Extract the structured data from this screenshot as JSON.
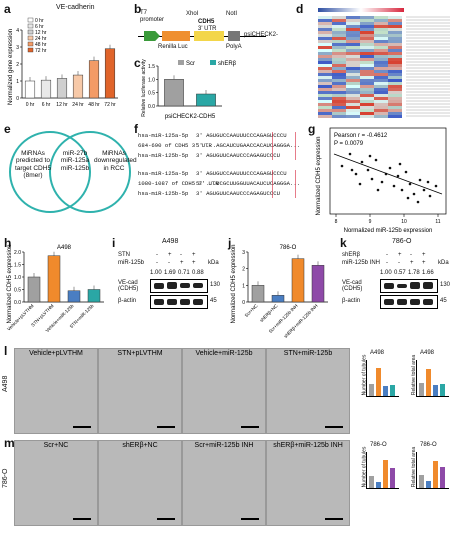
{
  "panels": {
    "a": {
      "letter": "a",
      "title": "VE-cadherin",
      "ylabel": "Normalized gene expression",
      "legend": [
        "0 hr",
        "6 hr",
        "12 hr",
        "24 hr",
        "48 hr",
        "72 hr"
      ],
      "ticks": [
        "0",
        "1",
        "2",
        "3",
        "4"
      ],
      "xcats": [
        "0 hr",
        "6 hr",
        "12 hr",
        "24 hr",
        "48 hr",
        "72 hr"
      ],
      "colors": [
        "#ffffff",
        "#e8e8e8",
        "#cfcfcf",
        "#f7c9a8",
        "#f39b66",
        "#e0642a"
      ]
    },
    "b": {
      "letter": "b",
      "xhoi": "XhoI",
      "noti": "NotI",
      "t7": "T7",
      "promoter": "promoter",
      "cdh5": "CDH5",
      "utr": "3' UTR",
      "renilla": "Renilla Luc",
      "polya": "PolyA",
      "plasmid": "psiCHECK2-"
    },
    "c": {
      "letter": "c",
      "ylabel": "Relative luciferase activity",
      "legend": [
        "Scr",
        "shERβ"
      ],
      "xlabel": "psiCHECK2-CDH5",
      "ticks": [
        "0.0",
        "0.5",
        "1.0",
        "1.5"
      ]
    },
    "d": {
      "letter": "d"
    },
    "e": {
      "letter": "e",
      "left": "MiRNAs predicted to target CDH5 (8mer)",
      "middle": "miR-27b miR-125a miR-125b",
      "right": "MiRNAs downregulated in RCC"
    },
    "f": {
      "letter": "f",
      "rows": [
        {
          "label": "hsa-miR-125a-5p",
          "seq": "3' AGUGUCCAAUUUCCCAGAGUCCCU"
        },
        {
          "label": "684-690 of CDH5 3' UTR",
          "seq": "5' ...AGCAUCUGAACCACAUCAGGGA..."
        },
        {
          "label": "hsa-miR-125b-5p",
          "seq": "3' AGUGUUCAAUCCCAGAGUCCCU"
        },
        {
          "label": "hsa-miR-125a-5p",
          "seq": "3' AGUGUCCAAUUUCCCAGAGUCCCU"
        },
        {
          "label": "1080-1087 of CDH5 3' UTR",
          "seq": "5' ...UCGCUUGGUUACAUCUCAGGGA..."
        },
        {
          "label": "hsa-miR-125b-5p",
          "seq": "3' AGUGUUCAAUCCCAGAGUCCCU"
        }
      ]
    },
    "g": {
      "letter": "g",
      "pearson": "Pearson r = -0.4612",
      "pvalue": "P = 0.0079",
      "xlabel": "Normalized miR-125b expression",
      "ylabel": "Normalized CDH5 expression",
      "xticks": [
        "8",
        "9",
        "10",
        "11"
      ]
    },
    "h": {
      "letter": "h",
      "title": "A498",
      "ylabel": "Normalized CDH5 expression",
      "ticks": [
        "0.0",
        "0.5",
        "1.0",
        "1.5",
        "2.0"
      ],
      "xcats": [
        "Vehicle+pLVTHM",
        "STN+pLVTHM",
        "Vehicle+miR-125b",
        "STN+miR-125b"
      ],
      "colors": [
        "#a0a0a0",
        "#f08a2c",
        "#4a7ec2",
        "#2aa7a5"
      ]
    },
    "i": {
      "letter": "i",
      "title": "A498",
      "stn": "STN",
      "mir": "miR-125b",
      "kda": "kDa",
      "signs_stn": [
        "-",
        "+",
        "-",
        "+"
      ],
      "signs_mir": [
        "-",
        "-",
        "+",
        "+"
      ],
      "values": [
        "1.00",
        "1.69",
        "0.71",
        "0.88"
      ],
      "vecad": "VE-cad (CDH5)",
      "actin": "β-actin",
      "mw1": "130",
      "mw2": "45"
    },
    "j": {
      "letter": "j",
      "title": "786-O",
      "ylabel": "Normalized CDH5 expression",
      "ticks": [
        "0",
        "1",
        "2",
        "3"
      ],
      "xcats": [
        "Scr+NC",
        "shERβ+NC",
        "Scr+miR-125b INH",
        "shERβ+miR-125b INH"
      ],
      "colors": [
        "#a0a0a0",
        "#4a7ec2",
        "#f08a2c",
        "#8e4aa8"
      ]
    },
    "k": {
      "letter": "k",
      "title": "786-O",
      "sh": "shERβ",
      "inh": "miR-125b INH",
      "kda": "kDa",
      "signs_sh": [
        "-",
        "+",
        "-",
        "+"
      ],
      "signs_inh": [
        "-",
        "-",
        "+",
        "+"
      ],
      "values": [
        "1.00",
        "0.57",
        "1.78",
        "1.66"
      ],
      "vecad": "VE-cad (CDH5)",
      "actin": "β-actin",
      "mw1": "130",
      "mw2": "45"
    },
    "l": {
      "letter": "l",
      "side": "A498",
      "captions": [
        "Vehicle+pLVTHM",
        "STN+pLVTHM",
        "Vehicle+miR-125b",
        "STN+miR-125b"
      ],
      "mini1_title": "A498",
      "mini2_title": "A498",
      "mini1_ylabel": "Number of tubules",
      "mini2_ylabel": "Relative total area"
    },
    "m": {
      "letter": "m",
      "side": "786-O",
      "captions": [
        "Scr+NC",
        "shERβ+NC",
        "Scr+miR-125b INH",
        "shERβ+miR-125b INH"
      ],
      "mini1_title": "786-O",
      "mini2_title": "786-O",
      "mini1_ylabel": "Number of tubules",
      "mini2_ylabel": "Relative total area"
    }
  },
  "chart_data": [
    {
      "type": "bar",
      "title": "VE-cadherin",
      "categories": [
        "0 hr",
        "6 hr",
        "12 hr",
        "24 hr",
        "48 hr",
        "72 hr"
      ],
      "values": [
        1.0,
        1.05,
        1.15,
        1.35,
        2.2,
        2.9
      ],
      "ylabel": "Normalized gene expression",
      "ylim": [
        0,
        4
      ]
    },
    {
      "type": "bar",
      "categories": [
        "Scr",
        "shERβ"
      ],
      "values": [
        1.0,
        0.45
      ],
      "xlabel": "psiCHECK2-CDH5",
      "ylabel": "Relative luciferase activity",
      "ylim": [
        0,
        1.5
      ]
    },
    {
      "type": "scatter",
      "xlabel": "Normalized miR-125b expression",
      "ylabel": "Normalized CDH5 expression",
      "xlim": [
        8,
        11
      ]
    },
    {
      "type": "bar",
      "title": "A498",
      "categories": [
        "Vehicle+pLVTHM",
        "STN+pLVTHM",
        "Vehicle+miR-125b",
        "STN+miR-125b"
      ],
      "values": [
        1.0,
        1.85,
        0.45,
        0.5
      ],
      "ylabel": "Normalized CDH5 expression",
      "ylim": [
        0,
        2.0
      ]
    },
    {
      "type": "bar",
      "title": "786-O",
      "categories": [
        "Scr+NC",
        "shERβ+NC",
        "Scr+miR-125b INH",
        "shERβ+miR-125b INH"
      ],
      "values": [
        1.0,
        0.4,
        2.6,
        2.2
      ],
      "ylabel": "Normalized CDH5 expression",
      "ylim": [
        0,
        3
      ]
    }
  ]
}
